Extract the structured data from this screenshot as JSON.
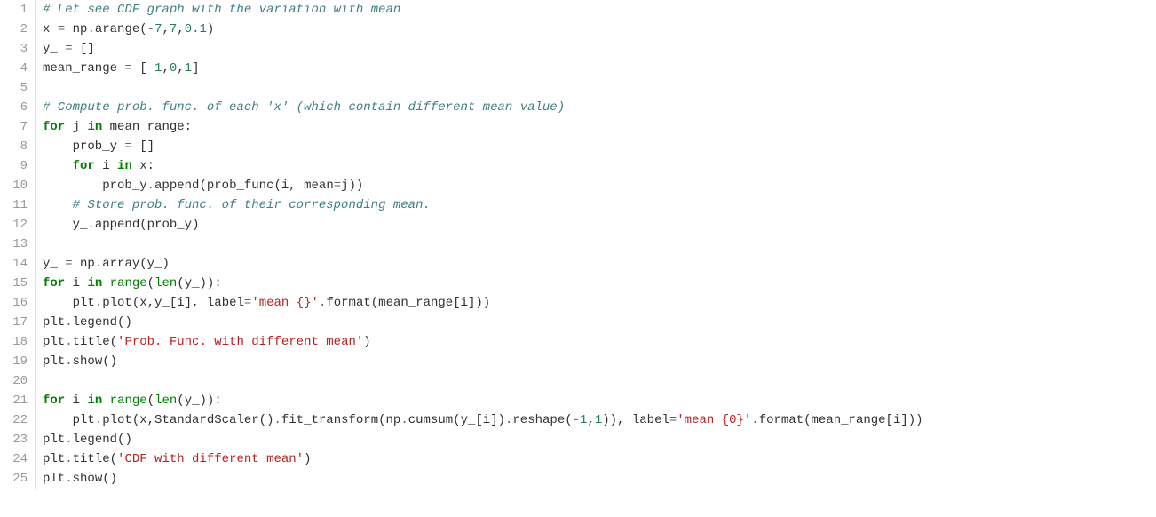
{
  "editor": {
    "background": "#ffffff",
    "gutter_color": "#999999",
    "gutter_border": "#e0e0e0",
    "font_family": "Consolas, Monaco, Courier New, monospace",
    "font_size": 14,
    "line_height": 22,
    "syntax_colors": {
      "comment": "#408080",
      "keyword": "#008000",
      "builtin": "#008000",
      "name": "#303030",
      "number": "#208050",
      "string": "#ba2121",
      "operator": "#666666",
      "punct": "#303030"
    },
    "line_numbers": [
      "1",
      "2",
      "3",
      "4",
      "5",
      "6",
      "7",
      "8",
      "9",
      "10",
      "11",
      "12",
      "13",
      "14",
      "15",
      "16",
      "17",
      "18",
      "19",
      "20",
      "21",
      "22",
      "23",
      "24",
      "25"
    ],
    "lines": [
      [
        {
          "t": "comment",
          "v": "# Let see CDF graph with the variation with mean"
        }
      ],
      [
        {
          "t": "name",
          "v": "x "
        },
        {
          "t": "operator",
          "v": "="
        },
        {
          "t": "name",
          "v": " np"
        },
        {
          "t": "operator",
          "v": "."
        },
        {
          "t": "name",
          "v": "arange"
        },
        {
          "t": "punct",
          "v": "("
        },
        {
          "t": "operator",
          "v": "-"
        },
        {
          "t": "number",
          "v": "7"
        },
        {
          "t": "punct",
          "v": ","
        },
        {
          "t": "number",
          "v": "7"
        },
        {
          "t": "punct",
          "v": ","
        },
        {
          "t": "number",
          "v": "0.1"
        },
        {
          "t": "punct",
          "v": ")"
        }
      ],
      [
        {
          "t": "name",
          "v": "y_ "
        },
        {
          "t": "operator",
          "v": "="
        },
        {
          "t": "name",
          "v": " "
        },
        {
          "t": "punct",
          "v": "[]"
        }
      ],
      [
        {
          "t": "name",
          "v": "mean_range "
        },
        {
          "t": "operator",
          "v": "="
        },
        {
          "t": "name",
          "v": " "
        },
        {
          "t": "punct",
          "v": "["
        },
        {
          "t": "operator",
          "v": "-"
        },
        {
          "t": "number",
          "v": "1"
        },
        {
          "t": "punct",
          "v": ","
        },
        {
          "t": "number",
          "v": "0"
        },
        {
          "t": "punct",
          "v": ","
        },
        {
          "t": "number",
          "v": "1"
        },
        {
          "t": "punct",
          "v": "]"
        }
      ],
      [],
      [
        {
          "t": "comment",
          "v": "# Compute prob. func. of each 'x' (which contain different mean value)"
        }
      ],
      [
        {
          "t": "keyword",
          "v": "for"
        },
        {
          "t": "name",
          "v": " j "
        },
        {
          "t": "keyword",
          "v": "in"
        },
        {
          "t": "name",
          "v": " mean_range"
        },
        {
          "t": "punct",
          "v": ":"
        }
      ],
      [
        {
          "t": "name",
          "v": "    prob_y "
        },
        {
          "t": "operator",
          "v": "="
        },
        {
          "t": "name",
          "v": " "
        },
        {
          "t": "punct",
          "v": "[]"
        }
      ],
      [
        {
          "t": "name",
          "v": "    "
        },
        {
          "t": "keyword",
          "v": "for"
        },
        {
          "t": "name",
          "v": " i "
        },
        {
          "t": "keyword",
          "v": "in"
        },
        {
          "t": "name",
          "v": " x"
        },
        {
          "t": "punct",
          "v": ":"
        }
      ],
      [
        {
          "t": "name",
          "v": "        prob_y"
        },
        {
          "t": "operator",
          "v": "."
        },
        {
          "t": "name",
          "v": "append"
        },
        {
          "t": "punct",
          "v": "("
        },
        {
          "t": "name",
          "v": "prob_func"
        },
        {
          "t": "punct",
          "v": "("
        },
        {
          "t": "name",
          "v": "i"
        },
        {
          "t": "punct",
          "v": ", "
        },
        {
          "t": "name",
          "v": "mean"
        },
        {
          "t": "operator",
          "v": "="
        },
        {
          "t": "name",
          "v": "j"
        },
        {
          "t": "punct",
          "v": "))"
        }
      ],
      [
        {
          "t": "name",
          "v": "    "
        },
        {
          "t": "comment",
          "v": "# Store prob. func. of their corresponding mean."
        }
      ],
      [
        {
          "t": "name",
          "v": "    y_"
        },
        {
          "t": "operator",
          "v": "."
        },
        {
          "t": "name",
          "v": "append"
        },
        {
          "t": "punct",
          "v": "("
        },
        {
          "t": "name",
          "v": "prob_y"
        },
        {
          "t": "punct",
          "v": ")"
        }
      ],
      [],
      [
        {
          "t": "name",
          "v": "y_ "
        },
        {
          "t": "operator",
          "v": "="
        },
        {
          "t": "name",
          "v": " np"
        },
        {
          "t": "operator",
          "v": "."
        },
        {
          "t": "name",
          "v": "array"
        },
        {
          "t": "punct",
          "v": "("
        },
        {
          "t": "name",
          "v": "y_"
        },
        {
          "t": "punct",
          "v": ")"
        }
      ],
      [
        {
          "t": "keyword",
          "v": "for"
        },
        {
          "t": "name",
          "v": " i "
        },
        {
          "t": "keyword",
          "v": "in"
        },
        {
          "t": "name",
          "v": " "
        },
        {
          "t": "builtin",
          "v": "range"
        },
        {
          "t": "punct",
          "v": "("
        },
        {
          "t": "builtin",
          "v": "len"
        },
        {
          "t": "punct",
          "v": "("
        },
        {
          "t": "name",
          "v": "y_"
        },
        {
          "t": "punct",
          "v": "))"
        },
        {
          "t": "punct",
          "v": ":"
        }
      ],
      [
        {
          "t": "name",
          "v": "    plt"
        },
        {
          "t": "operator",
          "v": "."
        },
        {
          "t": "name",
          "v": "plot"
        },
        {
          "t": "punct",
          "v": "("
        },
        {
          "t": "name",
          "v": "x"
        },
        {
          "t": "punct",
          "v": ","
        },
        {
          "t": "name",
          "v": "y_"
        },
        {
          "t": "punct",
          "v": "["
        },
        {
          "t": "name",
          "v": "i"
        },
        {
          "t": "punct",
          "v": "], "
        },
        {
          "t": "name",
          "v": "label"
        },
        {
          "t": "operator",
          "v": "="
        },
        {
          "t": "string",
          "v": "'mean {}'"
        },
        {
          "t": "operator",
          "v": "."
        },
        {
          "t": "name",
          "v": "format"
        },
        {
          "t": "punct",
          "v": "("
        },
        {
          "t": "name",
          "v": "mean_range"
        },
        {
          "t": "punct",
          "v": "["
        },
        {
          "t": "name",
          "v": "i"
        },
        {
          "t": "punct",
          "v": "]))"
        }
      ],
      [
        {
          "t": "name",
          "v": "plt"
        },
        {
          "t": "operator",
          "v": "."
        },
        {
          "t": "name",
          "v": "legend"
        },
        {
          "t": "punct",
          "v": "()"
        }
      ],
      [
        {
          "t": "name",
          "v": "plt"
        },
        {
          "t": "operator",
          "v": "."
        },
        {
          "t": "name",
          "v": "title"
        },
        {
          "t": "punct",
          "v": "("
        },
        {
          "t": "string",
          "v": "'Prob. Func. with different mean'"
        },
        {
          "t": "punct",
          "v": ")"
        }
      ],
      [
        {
          "t": "name",
          "v": "plt"
        },
        {
          "t": "operator",
          "v": "."
        },
        {
          "t": "name",
          "v": "show"
        },
        {
          "t": "punct",
          "v": "()"
        }
      ],
      [],
      [
        {
          "t": "keyword",
          "v": "for"
        },
        {
          "t": "name",
          "v": " i "
        },
        {
          "t": "keyword",
          "v": "in"
        },
        {
          "t": "name",
          "v": " "
        },
        {
          "t": "builtin",
          "v": "range"
        },
        {
          "t": "punct",
          "v": "("
        },
        {
          "t": "builtin",
          "v": "len"
        },
        {
          "t": "punct",
          "v": "("
        },
        {
          "t": "name",
          "v": "y_"
        },
        {
          "t": "punct",
          "v": "))"
        },
        {
          "t": "punct",
          "v": ":"
        }
      ],
      [
        {
          "t": "name",
          "v": "    plt"
        },
        {
          "t": "operator",
          "v": "."
        },
        {
          "t": "name",
          "v": "plot"
        },
        {
          "t": "punct",
          "v": "("
        },
        {
          "t": "name",
          "v": "x"
        },
        {
          "t": "punct",
          "v": ","
        },
        {
          "t": "name",
          "v": "StandardScaler"
        },
        {
          "t": "punct",
          "v": "()"
        },
        {
          "t": "operator",
          "v": "."
        },
        {
          "t": "name",
          "v": "fit_transform"
        },
        {
          "t": "punct",
          "v": "("
        },
        {
          "t": "name",
          "v": "np"
        },
        {
          "t": "operator",
          "v": "."
        },
        {
          "t": "name",
          "v": "cumsum"
        },
        {
          "t": "punct",
          "v": "("
        },
        {
          "t": "name",
          "v": "y_"
        },
        {
          "t": "punct",
          "v": "["
        },
        {
          "t": "name",
          "v": "i"
        },
        {
          "t": "punct",
          "v": "])"
        },
        {
          "t": "operator",
          "v": "."
        },
        {
          "t": "name",
          "v": "reshape"
        },
        {
          "t": "punct",
          "v": "("
        },
        {
          "t": "operator",
          "v": "-"
        },
        {
          "t": "number",
          "v": "1"
        },
        {
          "t": "punct",
          "v": ","
        },
        {
          "t": "number",
          "v": "1"
        },
        {
          "t": "punct",
          "v": ")), "
        },
        {
          "t": "name",
          "v": "label"
        },
        {
          "t": "operator",
          "v": "="
        },
        {
          "t": "string",
          "v": "'mean {0}'"
        },
        {
          "t": "operator",
          "v": "."
        },
        {
          "t": "name",
          "v": "format"
        },
        {
          "t": "punct",
          "v": "("
        },
        {
          "t": "name",
          "v": "mean_range"
        },
        {
          "t": "punct",
          "v": "["
        },
        {
          "t": "name",
          "v": "i"
        },
        {
          "t": "punct",
          "v": "]))"
        }
      ],
      [
        {
          "t": "name",
          "v": "plt"
        },
        {
          "t": "operator",
          "v": "."
        },
        {
          "t": "name",
          "v": "legend"
        },
        {
          "t": "punct",
          "v": "()"
        }
      ],
      [
        {
          "t": "name",
          "v": "plt"
        },
        {
          "t": "operator",
          "v": "."
        },
        {
          "t": "name",
          "v": "title"
        },
        {
          "t": "punct",
          "v": "("
        },
        {
          "t": "string",
          "v": "'CDF with different mean'"
        },
        {
          "t": "punct",
          "v": ")"
        }
      ],
      [
        {
          "t": "name",
          "v": "plt"
        },
        {
          "t": "operator",
          "v": "."
        },
        {
          "t": "name",
          "v": "show"
        },
        {
          "t": "punct",
          "v": "()"
        }
      ]
    ]
  }
}
